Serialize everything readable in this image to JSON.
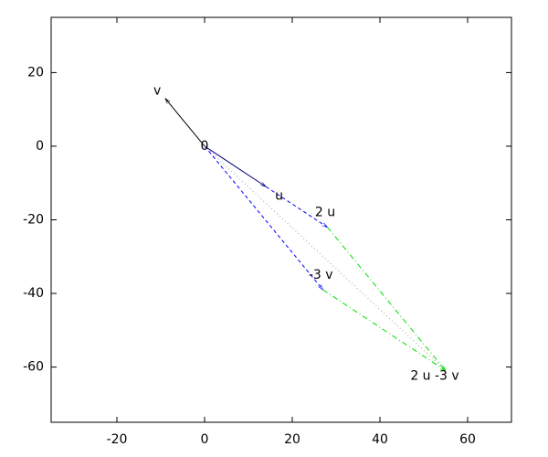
{
  "chart_data": {
    "type": "vector",
    "xlim": [
      -35,
      70
    ],
    "ylim": [
      -75,
      35
    ],
    "xticks": [
      -20,
      0,
      20,
      40,
      60
    ],
    "yticks": [
      -60,
      -40,
      -20,
      0,
      20
    ],
    "vectors": [
      {
        "from": [
          0,
          0
        ],
        "to": [
          -9,
          13
        ],
        "color": "#000000",
        "style": "solid"
      },
      {
        "from": [
          0,
          0
        ],
        "to": [
          14,
          -11
        ],
        "color": "#000080",
        "style": "solid"
      },
      {
        "from": [
          14,
          -11
        ],
        "to": [
          28,
          -22
        ],
        "color": "#0000ff",
        "style": "dashed"
      },
      {
        "from": [
          0,
          0
        ],
        "to": [
          27,
          -39
        ],
        "color": "#0000ff",
        "style": "dashed"
      },
      {
        "from": [
          28,
          -22
        ],
        "to": [
          55,
          -61
        ],
        "color": "#00dd00",
        "style": "dashdot"
      },
      {
        "from": [
          27,
          -39
        ],
        "to": [
          55,
          -61
        ],
        "color": "#00dd00",
        "style": "dashdot"
      },
      {
        "from": [
          0,
          0
        ],
        "to": [
          55,
          -61
        ],
        "color": "#a0a0a0",
        "style": "dotted"
      }
    ],
    "annotations": [
      {
        "text": "v",
        "x": -10.8,
        "y": 15
      },
      {
        "text": "0",
        "x": 0,
        "y": 0
      },
      {
        "text": "u",
        "x": 17,
        "y": -13.5
      },
      {
        "text": "2 u",
        "x": 27.5,
        "y": -18
      },
      {
        "text": "-3 v",
        "x": 26.5,
        "y": -35
      },
      {
        "text": "2 u -3 v",
        "x": 52.5,
        "y": -62.5
      }
    ]
  }
}
